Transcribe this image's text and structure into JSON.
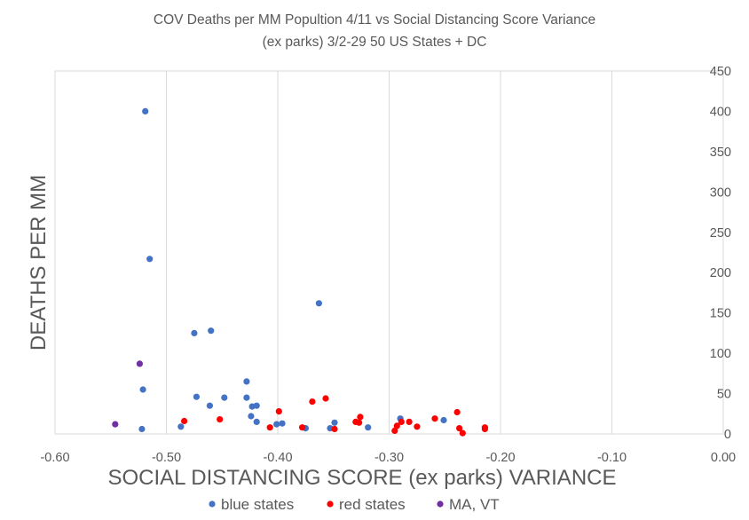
{
  "chart_data": {
    "type": "scatter",
    "title": [
      "COV Deaths per MM Popultion 4/11 vs Social Distancing Score Variance",
      "(ex parks) 3/2-29    50 US States + DC"
    ],
    "xlabel": "SOCIAL DISTANCING SCORE (ex parks) VARIANCE",
    "ylabel": "DEATHS PER MM",
    "xlim": [
      -0.6,
      0.0
    ],
    "ylim": [
      0,
      450
    ],
    "x_ticks": [
      "-0.60",
      "-0.50",
      "-0.40",
      "-0.30",
      "-0.20",
      "-0.10",
      "0.00"
    ],
    "y_ticks": [
      "0",
      "50",
      "100",
      "150",
      "200",
      "250",
      "300",
      "350",
      "400",
      "450"
    ],
    "y_axis_side": "right",
    "grid": "vertical",
    "legend_position": "bottom",
    "series": [
      {
        "name": "blue states",
        "color": "#4472C4",
        "points": [
          [
            -0.519,
            400
          ],
          [
            -0.515,
            217
          ],
          [
            -0.363,
            162
          ],
          [
            -0.46,
            128
          ],
          [
            -0.475,
            125
          ],
          [
            -0.428,
            65
          ],
          [
            -0.521,
            55
          ],
          [
            -0.473,
            46
          ],
          [
            -0.448,
            45
          ],
          [
            -0.428,
            45
          ],
          [
            -0.461,
            35
          ],
          [
            -0.419,
            35
          ],
          [
            -0.423,
            34
          ],
          [
            -0.424,
            22
          ],
          [
            -0.419,
            15
          ],
          [
            -0.29,
            19
          ],
          [
            -0.251,
            17
          ],
          [
            -0.349,
            14
          ],
          [
            -0.396,
            13
          ],
          [
            -0.401,
            12
          ],
          [
            -0.487,
            9
          ],
          [
            -0.319,
            8
          ],
          [
            -0.375,
            7
          ],
          [
            -0.353,
            7
          ],
          [
            -0.522,
            6
          ]
        ]
      },
      {
        "name": "red states",
        "color": "#FF0000",
        "points": [
          [
            -0.357,
            44
          ],
          [
            -0.369,
            40
          ],
          [
            -0.399,
            28
          ],
          [
            -0.239,
            27
          ],
          [
            -0.326,
            21
          ],
          [
            -0.259,
            19
          ],
          [
            -0.452,
            18
          ],
          [
            -0.484,
            16
          ],
          [
            -0.289,
            15
          ],
          [
            -0.282,
            15
          ],
          [
            -0.33,
            15
          ],
          [
            -0.327,
            14
          ],
          [
            -0.293,
            10
          ],
          [
            -0.275,
            9
          ],
          [
            -0.407,
            8
          ],
          [
            -0.378,
            8
          ],
          [
            -0.214,
            8
          ],
          [
            -0.237,
            7
          ],
          [
            -0.214,
            6
          ],
          [
            -0.349,
            6
          ],
          [
            -0.295,
            4
          ],
          [
            -0.234,
            1
          ]
        ]
      },
      {
        "name": "MA, VT",
        "color": "#7030A0",
        "points": [
          [
            -0.524,
            87
          ],
          [
            -0.546,
            12
          ]
        ]
      }
    ]
  }
}
